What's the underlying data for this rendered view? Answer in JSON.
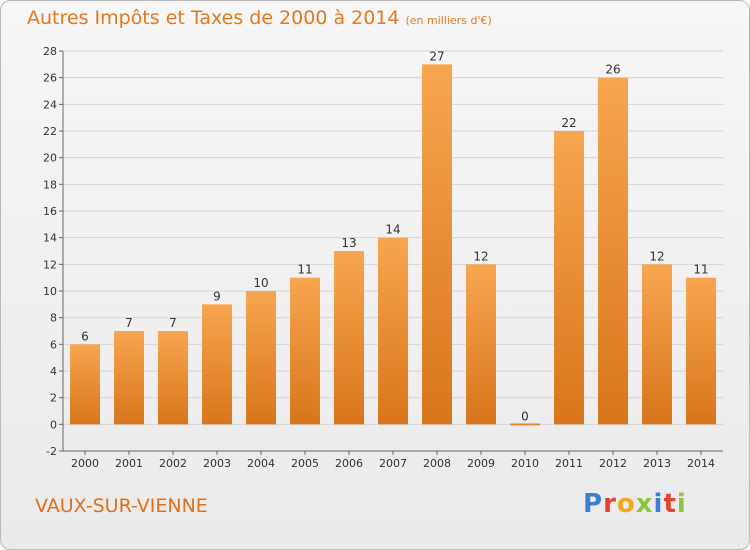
{
  "header": {
    "title": "Autres Impôts et Taxes de 2000 à 2014",
    "subtitle": "(en milliers d'€)"
  },
  "location": "VAUX-SUR-VIENNE",
  "logo": {
    "text": "Proxiti",
    "letters": [
      "P",
      "r",
      "o",
      "x",
      "i",
      "t",
      "i"
    ]
  },
  "colors": {
    "bar_light": "#f7a54f",
    "bar_dark": "#d8751b",
    "title": "#e07a1f",
    "grid": "#d4d4d4"
  },
  "chart_data": {
    "type": "bar",
    "title": "Autres Impôts et Taxes de 2000 à 2014",
    "subtitle": "(en milliers d'€)",
    "categories": [
      "2000",
      "2001",
      "2002",
      "2003",
      "2004",
      "2005",
      "2006",
      "2007",
      "2008",
      "2009",
      "2010",
      "2011",
      "2012",
      "2013",
      "2014"
    ],
    "values": [
      6,
      7,
      7,
      9,
      10,
      11,
      13,
      14,
      27,
      12,
      0,
      22,
      26,
      12,
      11
    ],
    "ylim": [
      -2,
      28
    ],
    "yticks": [
      -2,
      0,
      2,
      4,
      6,
      8,
      10,
      12,
      14,
      16,
      18,
      20,
      22,
      24,
      26,
      28
    ],
    "grid": true,
    "legend": "none",
    "xlabel": "",
    "ylabel": ""
  }
}
